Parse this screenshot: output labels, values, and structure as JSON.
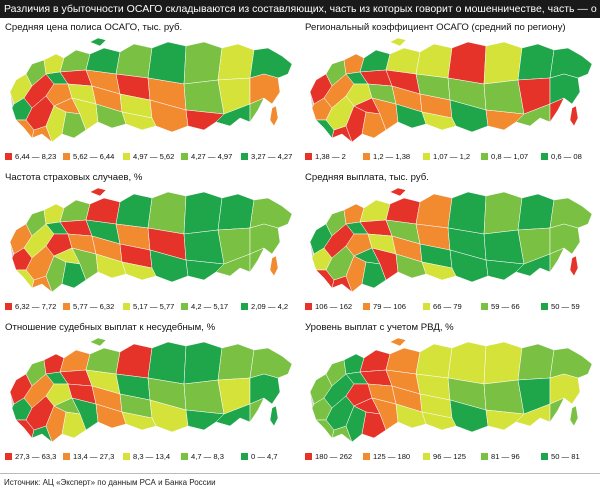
{
  "header": {
    "title": "Различия в убыточности ОСАГО складываются из составляющих, часть из которых говорит о мошенничестве, часть — о нерыночном ценообразовании"
  },
  "colors": {
    "c1": "#e63329",
    "c2": "#f28a30",
    "c3": "#d4e23a",
    "c4": "#7ac143",
    "c5": "#1fa64a"
  },
  "panels": [
    {
      "title": "Средняя цена полиса ОСАГО, тыс. руб.",
      "legend": [
        "6,44 — 8,23",
        "5,62 — 6,44",
        "4,97 — 5,62",
        "4,27 — 4,97",
        "3,27 — 4,27"
      ]
    },
    {
      "title": "Региональный коэффициент ОСАГО (средний по региону)",
      "legend": [
        "1,38 — 2",
        "1,2 — 1,38",
        "1,07 — 1,2",
        "0,8 — 1,07",
        "0,6 — 08"
      ]
    },
    {
      "title": "Частота страховых случаев, %",
      "legend": [
        "6,32 — 7,72",
        "5,77 — 6,32",
        "5,17 — 5,77",
        "4,2 — 5,17",
        "2,09 — 4,2"
      ]
    },
    {
      "title": "Средняя выплата, тыс. руб.",
      "legend": [
        "106 — 162",
        "79 — 106",
        "66 — 79",
        "59 — 66",
        "50 — 59"
      ]
    },
    {
      "title": "Отношение судебных выплат к несудебным, %",
      "legend": [
        "27,3 — 63,3",
        "13,4 — 27,3",
        "8,3 — 13,4",
        "4,7 — 8,3",
        "0 — 4,7"
      ]
    },
    {
      "title": "Уровень выплат с учетом РВД, %",
      "legend": [
        "180 — 262",
        "125 — 180",
        "96 — 125",
        "81 — 96",
        "50 — 81"
      ]
    }
  ],
  "footer": {
    "source": "Источник: АЦ «Эксперт» по данным РСА и Банка России"
  }
}
